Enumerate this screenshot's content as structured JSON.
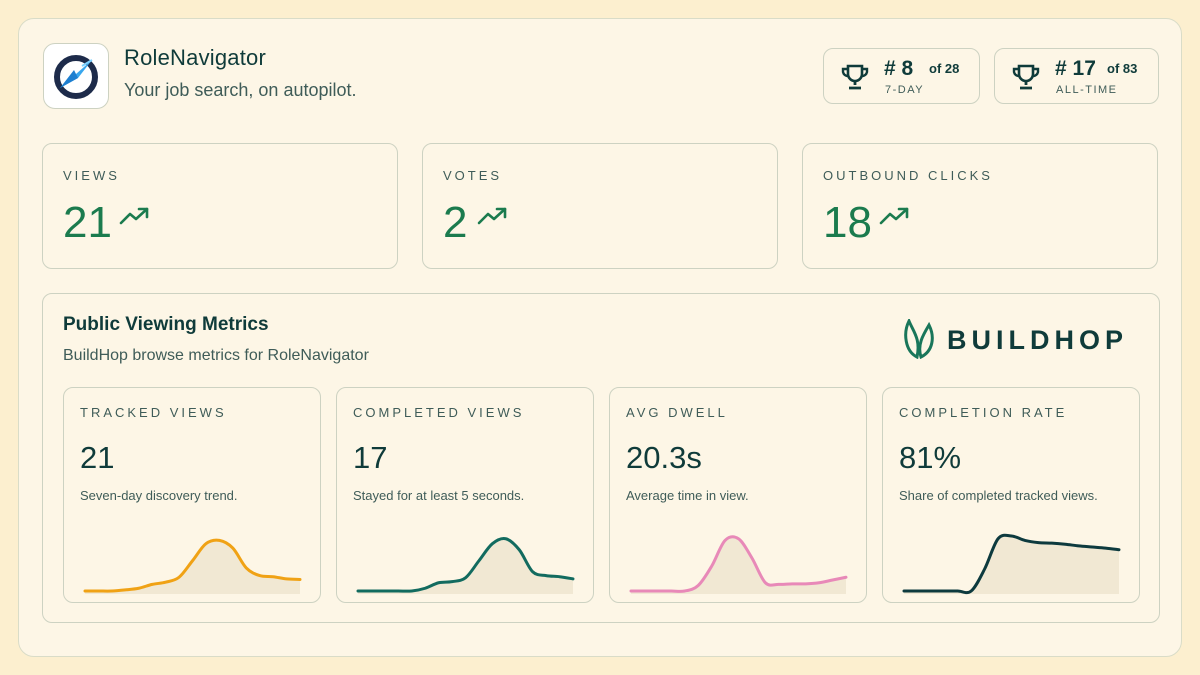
{
  "app": {
    "name": "RoleNavigator",
    "tagline": "Your job search, on autopilot.",
    "logo_icon": "paper-plane-compass-icon"
  },
  "rankings": [
    {
      "position": "# 8",
      "of": "of 28",
      "period": "7-DAY",
      "icon": "trophy-icon"
    },
    {
      "position": "# 17",
      "of": "of 83",
      "period": "ALL-TIME",
      "icon": "trophy-icon"
    }
  ],
  "stats": [
    {
      "label": "VIEWS",
      "value": "21",
      "icon": "trend-up-icon"
    },
    {
      "label": "VOTES",
      "value": "2",
      "icon": "trend-up-icon"
    },
    {
      "label": "OUTBOUND CLICKS",
      "value": "18",
      "icon": "trend-up-icon"
    }
  ],
  "metrics_panel": {
    "title": "Public Viewing Metrics",
    "subtitle": "BuildHop browse metrics for RoleNavigator",
    "brand": "BUILDHOP",
    "cards": [
      {
        "label": "TRACKED VIEWS",
        "value": "21",
        "description": "Seven-day discovery trend.",
        "color": "#f0a215",
        "trend": [
          0.0,
          0.0,
          0.0,
          0.02,
          0.05,
          0.12,
          0.16,
          0.25,
          0.55,
          0.86,
          0.92,
          0.78,
          0.42,
          0.28,
          0.26,
          0.22,
          0.21
        ]
      },
      {
        "label": "COMPLETED VIEWS",
        "value": "17",
        "description": "Stayed for at least 5 seconds.",
        "color": "#126b5f",
        "trend": [
          0.0,
          0.0,
          0.0,
          0.0,
          0.0,
          0.05,
          0.15,
          0.17,
          0.24,
          0.55,
          0.86,
          0.95,
          0.75,
          0.35,
          0.28,
          0.26,
          0.22
        ]
      },
      {
        "label": "AVG DWELL",
        "value": "20.3s",
        "description": "Average time in view.",
        "color": "#e889b8",
        "trend": [
          0.0,
          0.0,
          0.0,
          0.0,
          0.0,
          0.1,
          0.45,
          0.92,
          0.95,
          0.6,
          0.15,
          0.12,
          0.13,
          0.13,
          0.15,
          0.2,
          0.25
        ]
      },
      {
        "label": "COMPLETION RATE",
        "value": "81%",
        "description": "Share of completed tracked views.",
        "color": "#0d3a3e",
        "trend": [
          0.0,
          0.0,
          0.0,
          0.0,
          0.0,
          0.0,
          0.4,
          0.95,
          1.0,
          0.92,
          0.88,
          0.87,
          0.85,
          0.82,
          0.8,
          0.78,
          0.75
        ]
      }
    ]
  },
  "colors": {
    "background": "#fcefcf",
    "card": "#fdf6e6",
    "accent_green": "#1b7b4e",
    "dark_teal": "#0f3b3a"
  }
}
